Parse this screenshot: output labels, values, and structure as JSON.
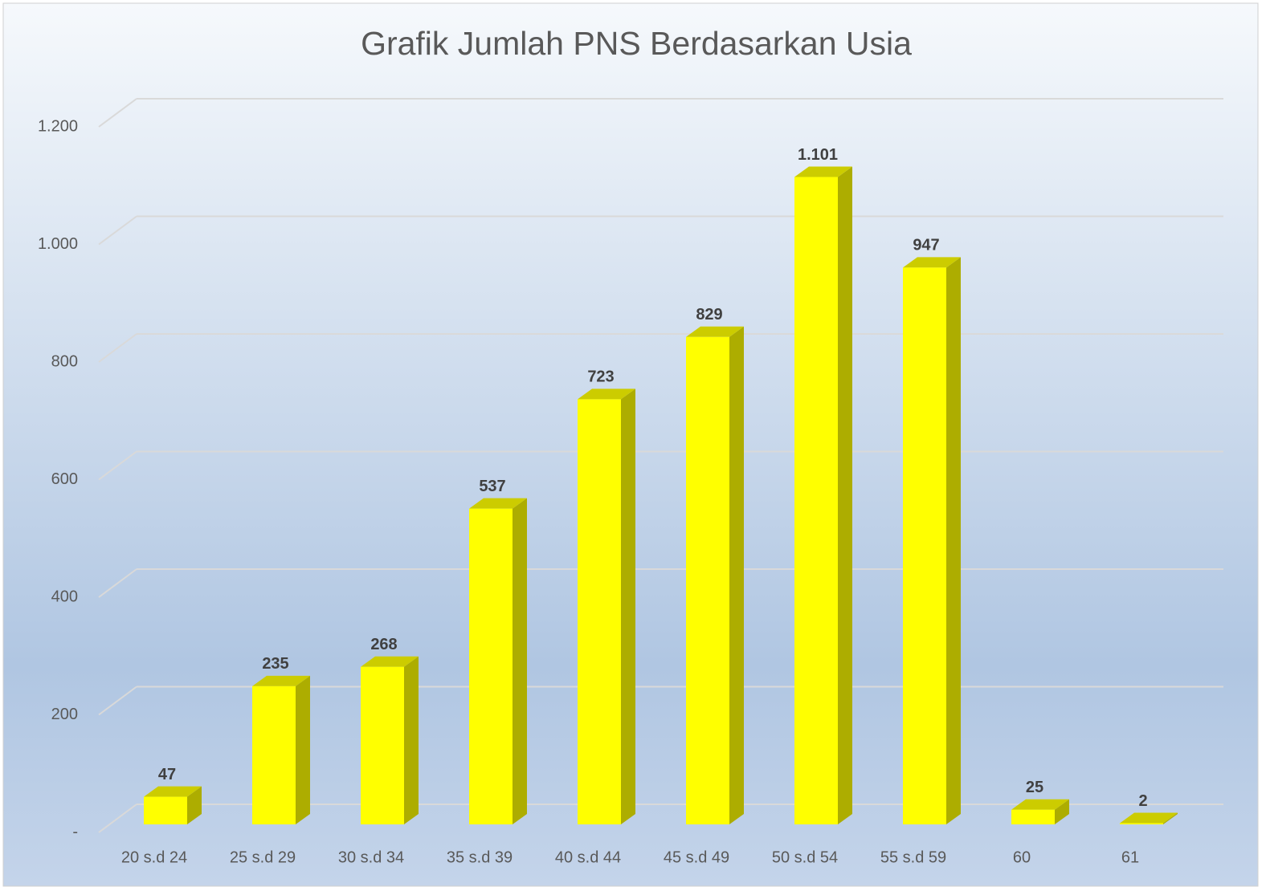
{
  "chart_data": {
    "type": "bar3d",
    "title": "Grafik Jumlah PNS Berdasarkan Usia",
    "categories": [
      "20 s.d 24",
      "25 s.d 29",
      "30 s.d 34",
      "35 s.d 39",
      "40 s.d 44",
      "45 s.d 49",
      "50 s.d 54",
      "55 s.d 59",
      "60",
      "61"
    ],
    "values": [
      47,
      235,
      268,
      537,
      723,
      829,
      1101,
      947,
      25,
      2
    ],
    "value_labels": [
      "47",
      "235",
      "268",
      "537",
      "723",
      "829",
      "1.101",
      "947",
      "25",
      "2"
    ],
    "color": "#ffff00",
    "ylim": [
      0,
      1200
    ],
    "yticks": [
      {
        "value": 0,
        "label": "-"
      },
      200,
      400,
      600,
      800,
      {
        "value": 1000,
        "label": "1.000"
      },
      {
        "value": 1200,
        "label": "1.200"
      }
    ],
    "grid": true
  }
}
